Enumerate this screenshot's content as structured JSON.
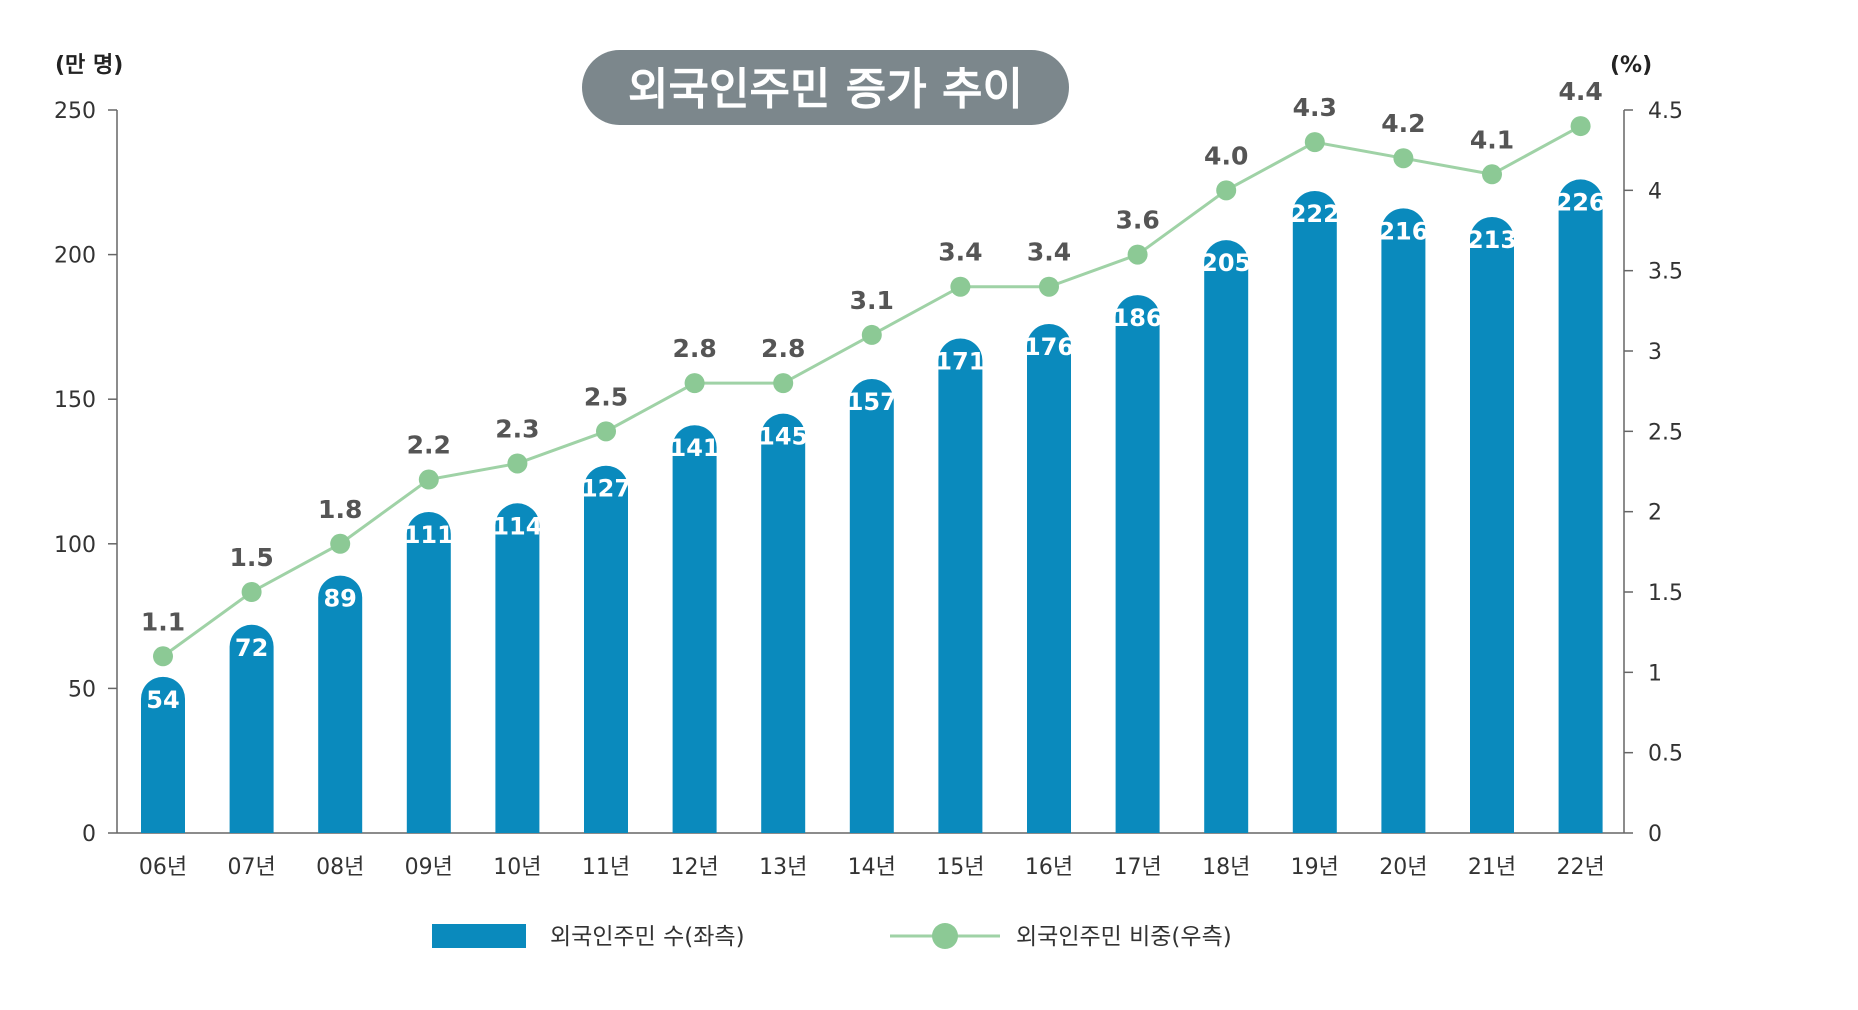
{
  "chart_data": {
    "type": "bar",
    "title": "외국인주민 증가 추이",
    "categories": [
      "06년",
      "07년",
      "08년",
      "09년",
      "10년",
      "11년",
      "12년",
      "13년",
      "14년",
      "15년",
      "16년",
      "17년",
      "18년",
      "19년",
      "20년",
      "21년",
      "22년"
    ],
    "series": [
      {
        "name": "외국인주민 수(좌측)",
        "type": "bar",
        "axis": "left",
        "values": [
          54,
          72,
          89,
          111,
          114,
          127,
          141,
          145,
          157,
          171,
          176,
          186,
          205,
          222,
          216,
          213,
          226
        ],
        "labels": [
          "54",
          "72",
          "89",
          "111",
          "114",
          "127",
          "141",
          "145",
          "157",
          "171",
          "176",
          "186",
          "205",
          "222",
          "216",
          "213",
          "226"
        ]
      },
      {
        "name": "외국인주민 비중(우측)",
        "type": "line",
        "axis": "right",
        "values": [
          1.1,
          1.5,
          1.8,
          2.2,
          2.3,
          2.5,
          2.8,
          2.8,
          3.1,
          3.4,
          3.4,
          3.6,
          4.0,
          4.3,
          4.2,
          4.1,
          4.4
        ],
        "labels": [
          "1.1",
          "1.5",
          "1.8",
          "2.2",
          "2.3",
          "2.5",
          "2.8",
          "2.8",
          "3.1",
          "3.4",
          "3.4",
          "3.6",
          "4.0",
          "4.3",
          "4.2",
          "4.1",
          "4.4"
        ]
      }
    ],
    "y_left": {
      "unit": "(만 명)",
      "range": [
        0,
        250
      ],
      "ticks": [
        "0",
        "50",
        "100",
        "150",
        "200",
        "250"
      ]
    },
    "y_right": {
      "unit": "(%)",
      "range": [
        0,
        4.5
      ],
      "ticks": [
        "0",
        "0.5",
        "1",
        "1.5",
        "2",
        "2.5",
        "3",
        "3.5",
        "4",
        "4.5"
      ]
    },
    "legend": {
      "position": "bottom",
      "entries": [
        "외국인주민 수(좌측)",
        "외국인주민 비중(우측)"
      ]
    },
    "grid": false,
    "colors": {
      "bar": "#0a8abd",
      "line": "#9fd2a6",
      "marker": "#8cc995",
      "title_bg": "#7c878c",
      "axis": "#666666"
    }
  }
}
